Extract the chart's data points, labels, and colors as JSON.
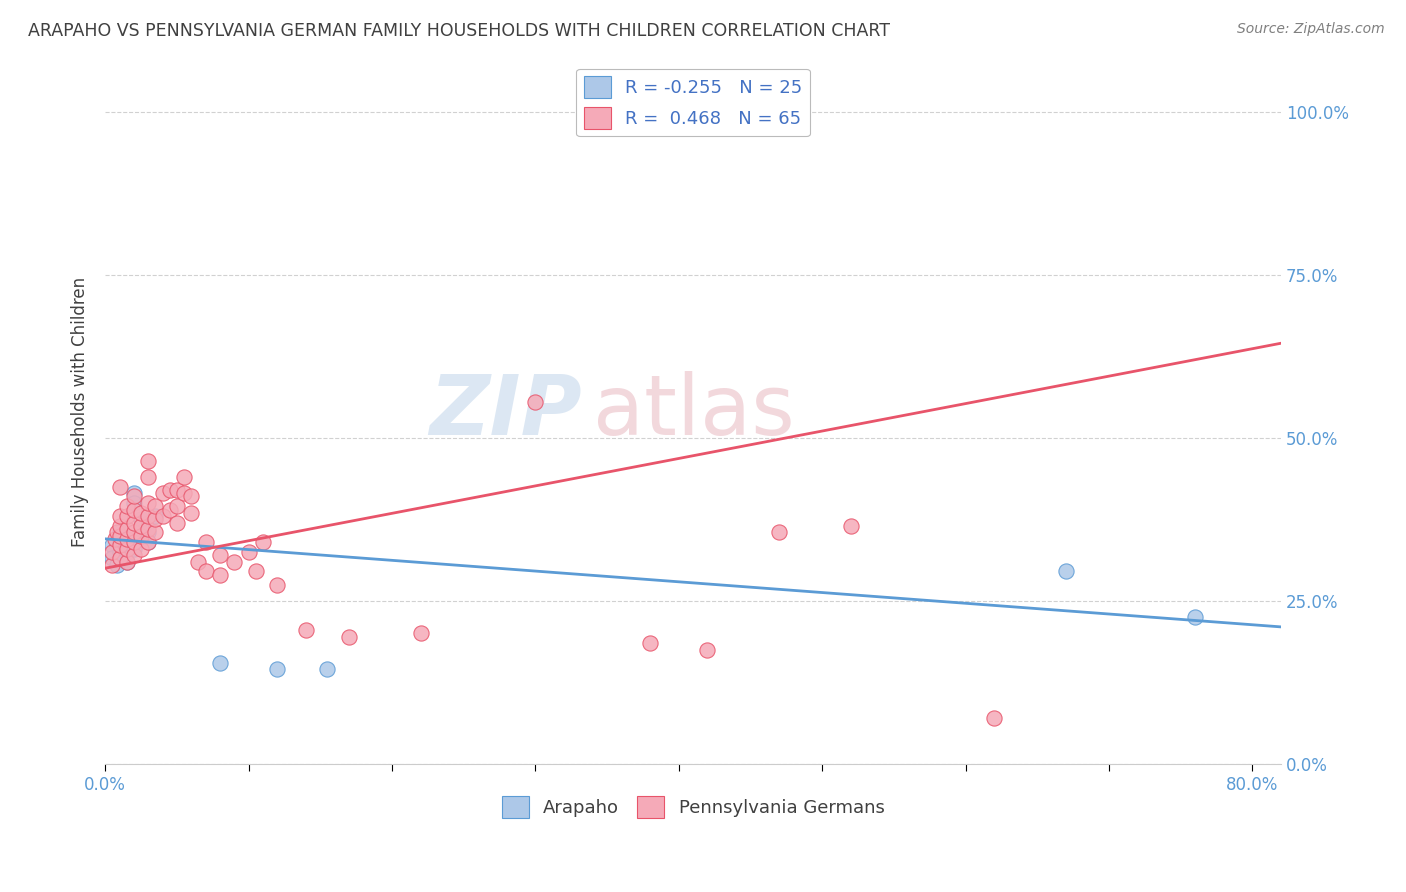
{
  "title": "ARAPAHO VS PENNSYLVANIA GERMAN FAMILY HOUSEHOLDS WITH CHILDREN CORRELATION CHART",
  "source": "Source: ZipAtlas.com",
  "ylabel": "Family Households with Children",
  "xlabel_arapaho": "Arapaho",
  "xlabel_penn": "Pennsylvania Germans",
  "xlim": [
    0.0,
    0.82
  ],
  "ylim": [
    0.0,
    1.08
  ],
  "yticks": [
    0.0,
    0.25,
    0.5,
    0.75,
    1.0
  ],
  "ytick_labels": [
    "0.0%",
    "25.0%",
    "50.0%",
    "75.0%",
    "100.0%"
  ],
  "xticks": [
    0.0,
    0.1,
    0.2,
    0.3,
    0.4,
    0.5,
    0.6,
    0.7,
    0.8
  ],
  "xtick_labels_show": {
    "0": "0.0%",
    "0.8": "80.0%"
  },
  "arapaho_R": -0.255,
  "arapaho_N": 25,
  "penn_R": 0.468,
  "penn_N": 65,
  "arapaho_color": "#adc8e8",
  "penn_color": "#f5aab8",
  "arapaho_line_color": "#5b9bd5",
  "penn_line_color": "#e8546a",
  "background_color": "#ffffff",
  "grid_color": "#cccccc",
  "title_color": "#404040",
  "source_color": "#808080",
  "legend_text_color": "#4472c4",
  "arapaho_scatter": [
    [
      0.005,
      0.335
    ],
    [
      0.005,
      0.315
    ],
    [
      0.008,
      0.305
    ],
    [
      0.01,
      0.355
    ],
    [
      0.01,
      0.34
    ],
    [
      0.01,
      0.325
    ],
    [
      0.01,
      0.315
    ],
    [
      0.015,
      0.34
    ],
    [
      0.015,
      0.325
    ],
    [
      0.015,
      0.31
    ],
    [
      0.02,
      0.345
    ],
    [
      0.02,
      0.33
    ],
    [
      0.02,
      0.415
    ],
    [
      0.02,
      0.4
    ],
    [
      0.025,
      0.375
    ],
    [
      0.025,
      0.355
    ],
    [
      0.03,
      0.37
    ],
    [
      0.03,
      0.355
    ],
    [
      0.03,
      0.34
    ],
    [
      0.035,
      0.38
    ],
    [
      0.08,
      0.155
    ],
    [
      0.12,
      0.145
    ],
    [
      0.155,
      0.145
    ],
    [
      0.67,
      0.295
    ],
    [
      0.76,
      0.225
    ]
  ],
  "penn_scatter": [
    [
      0.005,
      0.305
    ],
    [
      0.005,
      0.325
    ],
    [
      0.007,
      0.345
    ],
    [
      0.008,
      0.355
    ],
    [
      0.01,
      0.315
    ],
    [
      0.01,
      0.335
    ],
    [
      0.01,
      0.35
    ],
    [
      0.01,
      0.365
    ],
    [
      0.01,
      0.38
    ],
    [
      0.01,
      0.425
    ],
    [
      0.015,
      0.31
    ],
    [
      0.015,
      0.33
    ],
    [
      0.015,
      0.345
    ],
    [
      0.015,
      0.36
    ],
    [
      0.015,
      0.38
    ],
    [
      0.015,
      0.395
    ],
    [
      0.02,
      0.32
    ],
    [
      0.02,
      0.34
    ],
    [
      0.02,
      0.355
    ],
    [
      0.02,
      0.37
    ],
    [
      0.02,
      0.39
    ],
    [
      0.02,
      0.41
    ],
    [
      0.025,
      0.33
    ],
    [
      0.025,
      0.35
    ],
    [
      0.025,
      0.365
    ],
    [
      0.025,
      0.385
    ],
    [
      0.03,
      0.34
    ],
    [
      0.03,
      0.36
    ],
    [
      0.03,
      0.38
    ],
    [
      0.03,
      0.4
    ],
    [
      0.03,
      0.44
    ],
    [
      0.03,
      0.465
    ],
    [
      0.035,
      0.355
    ],
    [
      0.035,
      0.375
    ],
    [
      0.035,
      0.395
    ],
    [
      0.04,
      0.38
    ],
    [
      0.04,
      0.415
    ],
    [
      0.045,
      0.39
    ],
    [
      0.045,
      0.42
    ],
    [
      0.05,
      0.37
    ],
    [
      0.05,
      0.395
    ],
    [
      0.05,
      0.42
    ],
    [
      0.055,
      0.415
    ],
    [
      0.055,
      0.44
    ],
    [
      0.06,
      0.385
    ],
    [
      0.06,
      0.41
    ],
    [
      0.065,
      0.31
    ],
    [
      0.07,
      0.34
    ],
    [
      0.07,
      0.295
    ],
    [
      0.08,
      0.32
    ],
    [
      0.08,
      0.29
    ],
    [
      0.09,
      0.31
    ],
    [
      0.1,
      0.325
    ],
    [
      0.105,
      0.295
    ],
    [
      0.11,
      0.34
    ],
    [
      0.12,
      0.275
    ],
    [
      0.14,
      0.205
    ],
    [
      0.17,
      0.195
    ],
    [
      0.22,
      0.2
    ],
    [
      0.3,
      0.555
    ],
    [
      0.38,
      0.185
    ],
    [
      0.42,
      0.175
    ],
    [
      0.47,
      0.355
    ],
    [
      0.52,
      0.365
    ],
    [
      0.62,
      0.07
    ]
  ],
  "arapaho_line_x": [
    0.0,
    0.82
  ],
  "arapaho_line_y": [
    0.345,
    0.21
  ],
  "penn_line_x": [
    0.0,
    0.82
  ],
  "penn_line_y": [
    0.3,
    0.645
  ],
  "watermark_zip_color": "#c5d8ec",
  "watermark_atlas_color": "#e8b8c0"
}
